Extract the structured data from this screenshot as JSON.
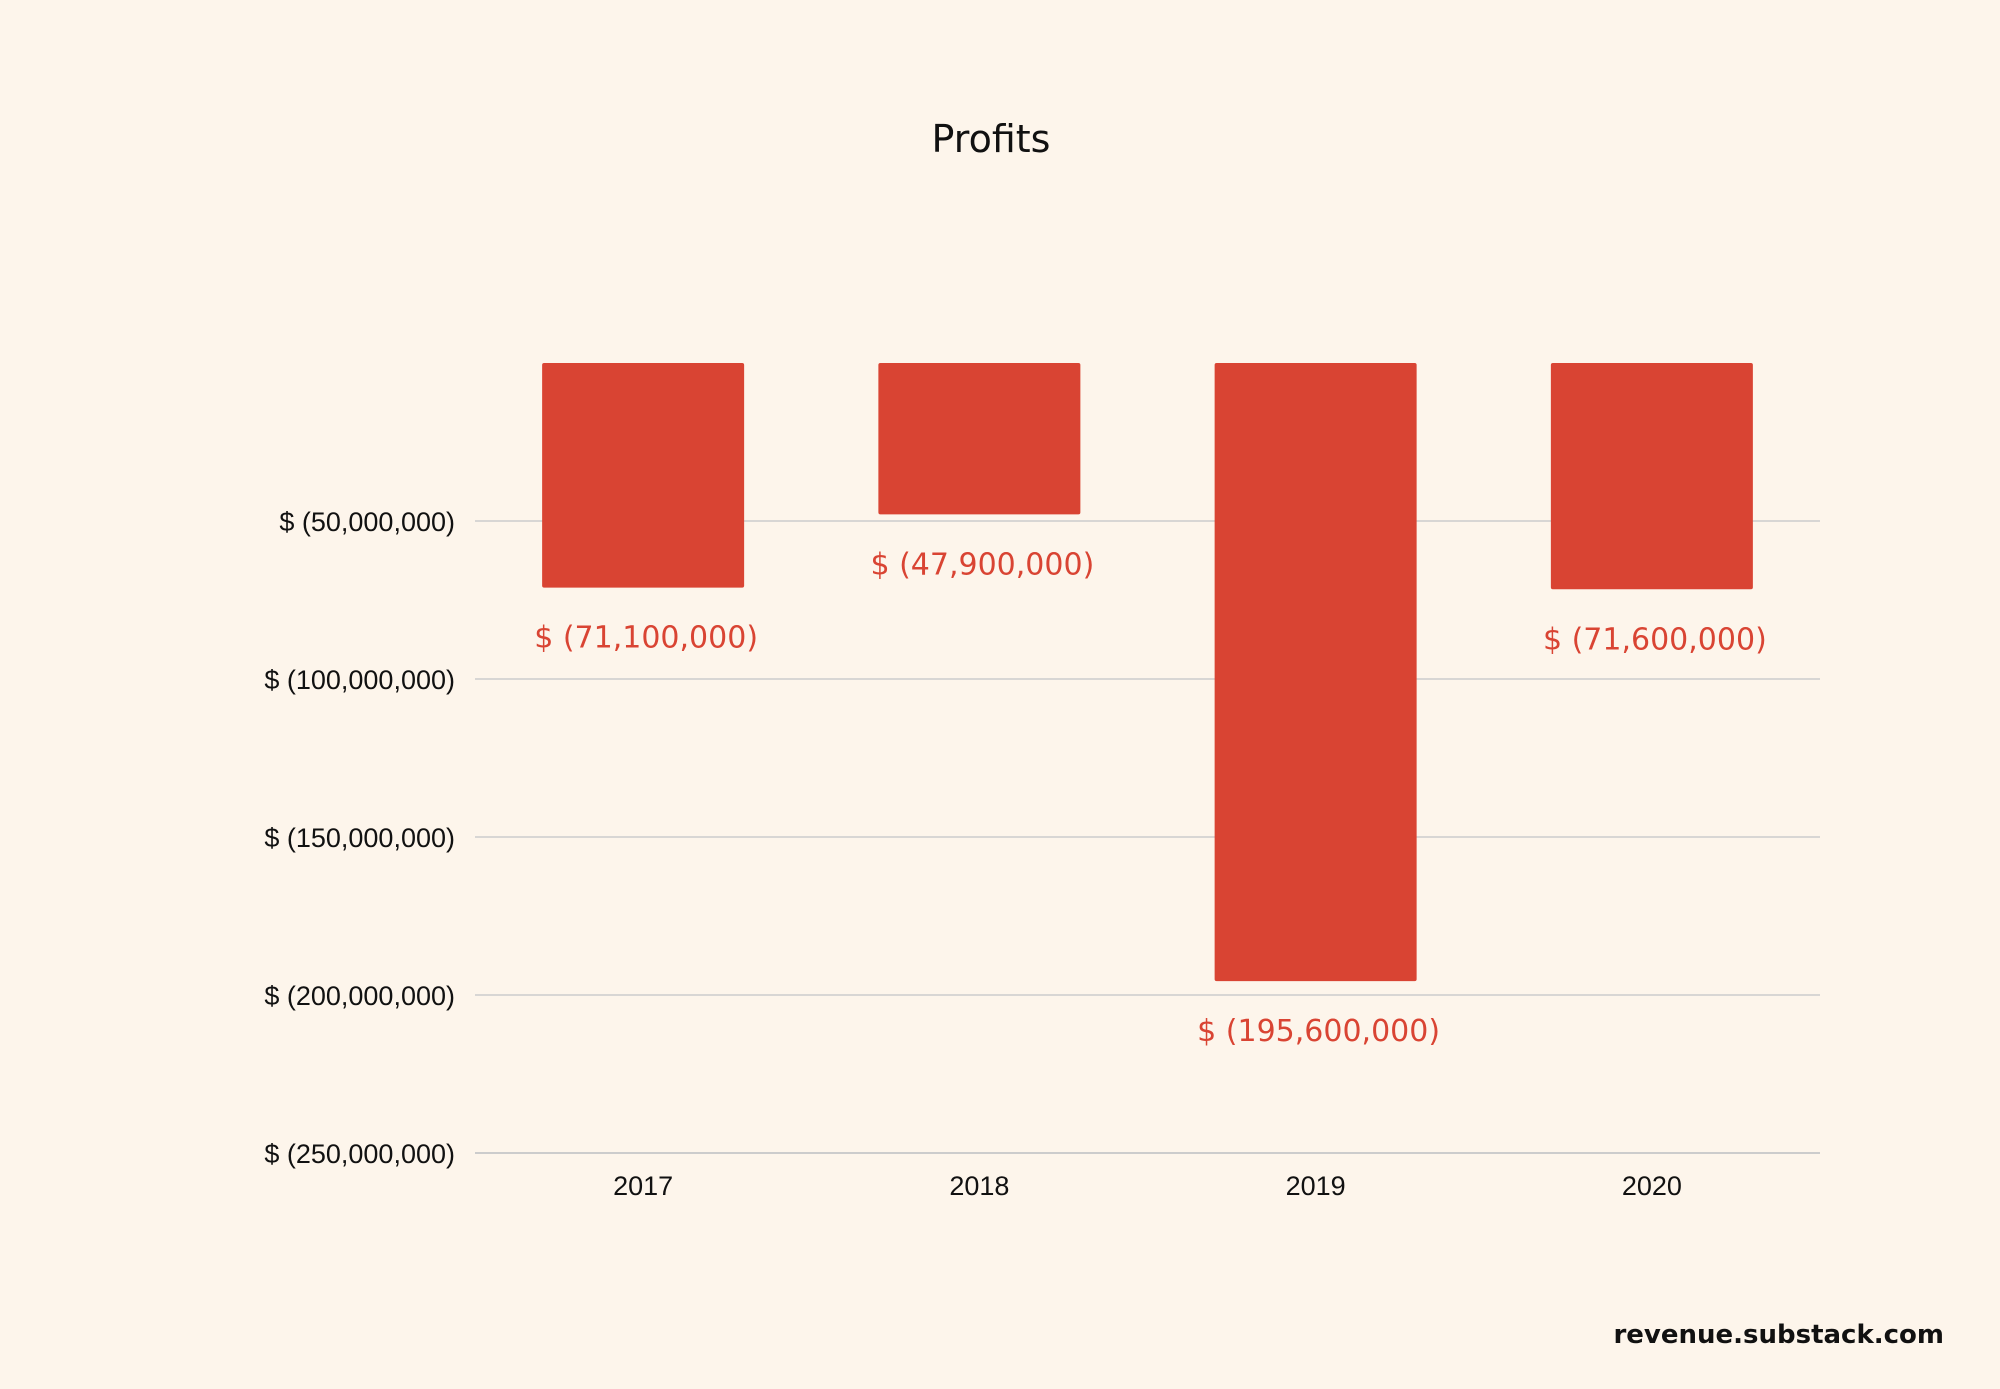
{
  "chart_data": {
    "type": "bar",
    "title": "Profits",
    "xlabel": "",
    "ylabel": "",
    "categories": [
      "2017",
      "2018",
      "2019",
      "2020"
    ],
    "values": [
      -71100000,
      -47900000,
      -195600000,
      -71600000
    ],
    "data_labels": [
      "$ (71,100,000)",
      "$ (47,900,000)",
      "$ (195,600,000)",
      "$ (71,600,000)"
    ],
    "y_ticks": [
      -50000000,
      -100000000,
      -150000000,
      -200000000,
      -250000000
    ],
    "y_tick_labels": [
      "$ (50,000,000)",
      "$ (100,000,000)",
      "$ (150,000,000)",
      "$ (200,000,000)",
      "$ (250,000,000)"
    ],
    "ylim": [
      -250000000,
      0
    ],
    "grid": true,
    "legend": "none"
  },
  "watermark": "revenue.substack.com",
  "colors": {
    "background": "#FDF5EB",
    "bar": "#D94433",
    "data_label": "#D94433",
    "gridline": "#CCCCCC",
    "text": "#111111"
  }
}
